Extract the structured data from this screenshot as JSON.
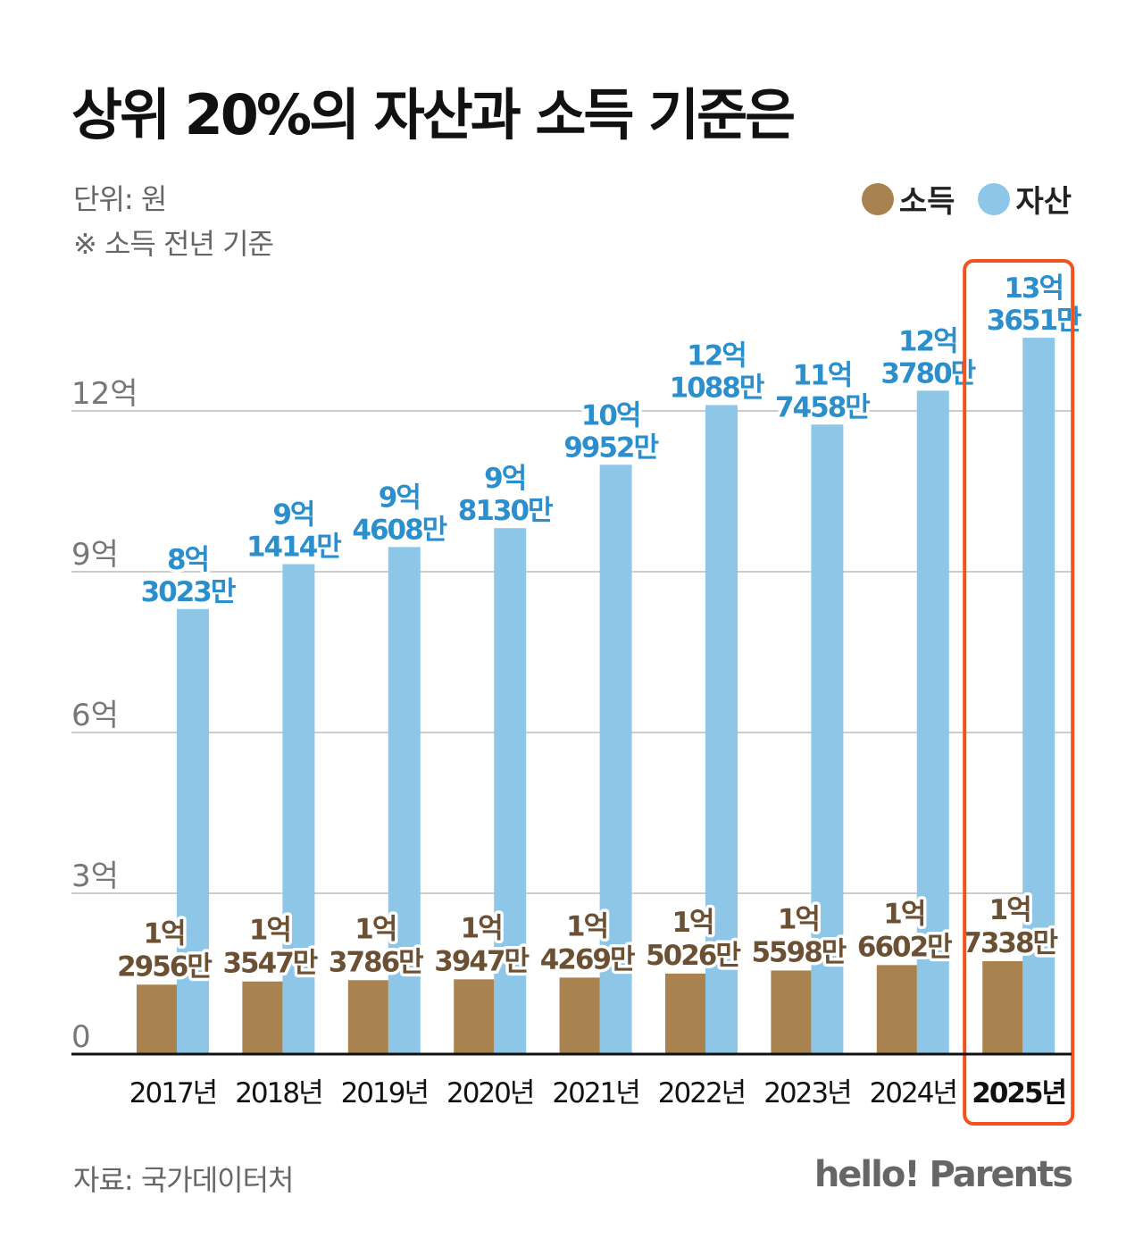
{
  "title": "상위 20%의 자산과 소득 기준은",
  "unit": "단위: 원",
  "note": "※ 소득 전년 기준",
  "source": "자료: 국가데이터처",
  "logo": "hello! Parents",
  "chart_data": {
    "type": "bar",
    "title": "상위 20%의 자산과 소득 기준은",
    "ylabel": "",
    "ylim": [
      0,
      14
    ],
    "yticks": [
      {
        "v": 0,
        "label": "0"
      },
      {
        "v": 3,
        "label": "3억"
      },
      {
        "v": 6,
        "label": "6억"
      },
      {
        "v": 9,
        "label": "9억"
      },
      {
        "v": 12,
        "label": "12억"
      }
    ],
    "grid": true,
    "legend_position": "top-right",
    "categories": [
      "2017년",
      "2018년",
      "2019년",
      "2020년",
      "2021년",
      "2022년",
      "2023년",
      "2024년",
      "2025년"
    ],
    "highlight": "2025년",
    "highlight_color": "#F4511E",
    "series": [
      {
        "name": "소득",
        "color": "#A8834F",
        "label_color": "#6B5034",
        "values": [
          1.2956,
          1.3547,
          1.3786,
          1.3947,
          1.4269,
          1.5026,
          1.5598,
          1.6602,
          1.7338
        ],
        "labels": [
          [
            "1억",
            "2956만"
          ],
          [
            "1억",
            "3547만"
          ],
          [
            "1억",
            "3786만"
          ],
          [
            "1억",
            "3947만"
          ],
          [
            "1억",
            "4269만"
          ],
          [
            "1억",
            "5026만"
          ],
          [
            "1억",
            "5598만"
          ],
          [
            "1억",
            "6602만"
          ],
          [
            "1억",
            "7338만"
          ]
        ]
      },
      {
        "name": "자산",
        "color": "#8EC6E8",
        "label_color": "#2A8FCC",
        "values": [
          8.3023,
          9.1414,
          9.4608,
          9.813,
          10.9952,
          12.1088,
          11.7458,
          12.378,
          13.3651
        ],
        "labels": [
          [
            "8억",
            "3023만"
          ],
          [
            "9억",
            "1414만"
          ],
          [
            "9억",
            "4608만"
          ],
          [
            "9억",
            "8130만"
          ],
          [
            "10억",
            "9952만"
          ],
          [
            "12억",
            "1088만"
          ],
          [
            "11억",
            "7458만"
          ],
          [
            "12억",
            "3780만"
          ],
          [
            "13억",
            "3651만"
          ]
        ]
      }
    ]
  }
}
